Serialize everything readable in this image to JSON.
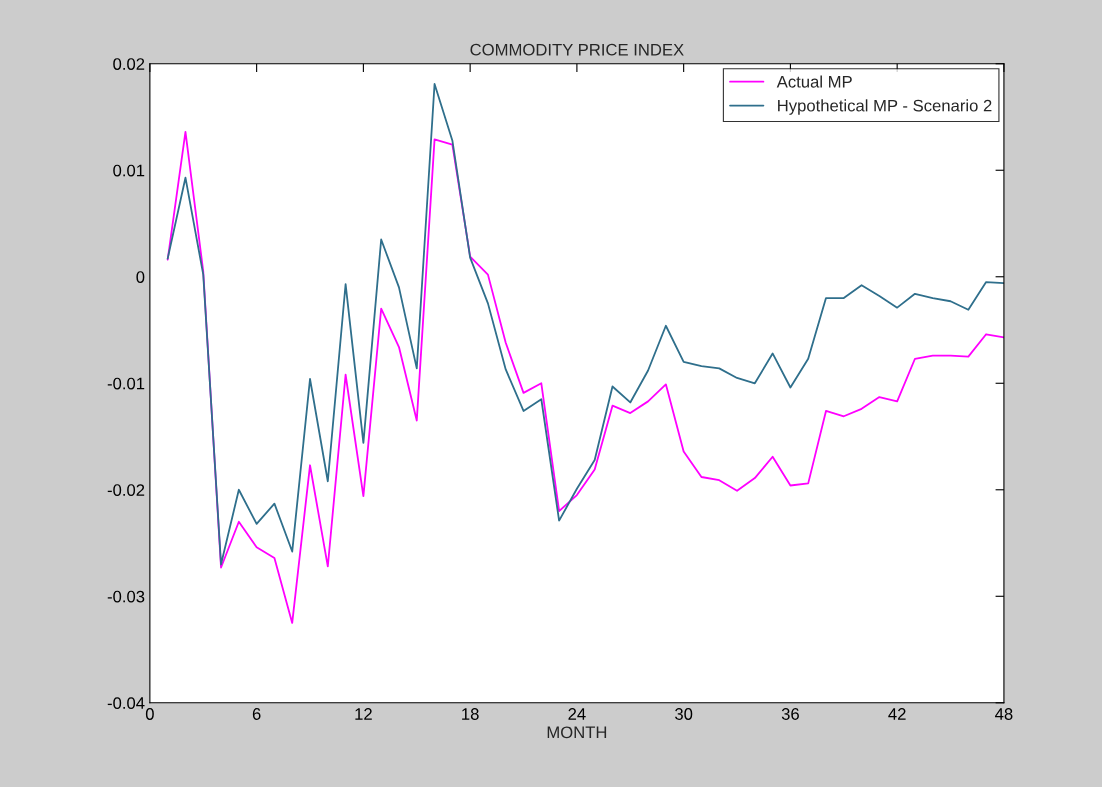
{
  "chart_data": {
    "type": "line",
    "title": "COMMODITY PRICE INDEX",
    "xlabel": "MONTH",
    "x": [
      1,
      2,
      3,
      4,
      5,
      6,
      7,
      8,
      9,
      10,
      11,
      12,
      13,
      14,
      15,
      16,
      17,
      18,
      19,
      20,
      21,
      22,
      23,
      24,
      25,
      26,
      27,
      28,
      29,
      30,
      31,
      32,
      33,
      34,
      35,
      36,
      37,
      38,
      39,
      40,
      41,
      42,
      43,
      44,
      45,
      46,
      47,
      48
    ],
    "series": [
      {
        "name": "Actual MP",
        "color": "#ff00ff",
        "values": [
          0.0016,
          0.0136,
          0.0005,
          -0.0273,
          -0.023,
          -0.0254,
          -0.0264,
          -0.0325,
          -0.0177,
          -0.0272,
          -0.0092,
          -0.0206,
          -0.003,
          -0.0066,
          -0.0135,
          0.0129,
          0.0124,
          0.0019,
          0.0002,
          -0.0062,
          -0.0109,
          -0.01,
          -0.022,
          -0.0205,
          -0.0181,
          -0.0121,
          -0.0128,
          -0.0117,
          -0.0101,
          -0.0164,
          -0.0188,
          -0.0191,
          -0.0201,
          -0.0189,
          -0.0169,
          -0.0196,
          -0.0194,
          -0.0126,
          -0.0131,
          -0.0124,
          -0.0113,
          -0.0117,
          -0.0077,
          -0.0074,
          -0.0074,
          -0.0075,
          -0.0054,
          -0.0057
        ]
      },
      {
        "name": "Hypothetical MP - Scenario 2",
        "color": "#2f6f8c",
        "values": [
          0.0017,
          0.0093,
          0.0002,
          -0.027,
          -0.02,
          -0.0232,
          -0.0213,
          -0.0258,
          -0.0096,
          -0.0192,
          -0.0007,
          -0.0156,
          0.0035,
          -0.001,
          -0.0086,
          0.0181,
          0.0128,
          0.0018,
          -0.0025,
          -0.0087,
          -0.0126,
          -0.0115,
          -0.0229,
          -0.0199,
          -0.0172,
          -0.0103,
          -0.0118,
          -0.0088,
          -0.0046,
          -0.008,
          -0.0084,
          -0.0086,
          -0.0095,
          -0.01,
          -0.0072,
          -0.0104,
          -0.0077,
          -0.002,
          -0.002,
          -0.0008,
          -0.0018,
          -0.0029,
          -0.0016,
          -0.002,
          -0.0023,
          -0.0031,
          -0.0005,
          -0.0006
        ]
      }
    ],
    "xlim": [
      0,
      48
    ],
    "xticks": [
      0,
      6,
      12,
      18,
      24,
      30,
      36,
      42,
      48
    ],
    "ylim": [
      -0.04,
      0.02
    ],
    "yticks": [
      -0.04,
      -0.03,
      -0.02,
      -0.01,
      0,
      0.01,
      0.02
    ],
    "grid": false,
    "legend": "top right",
    "marker": "none",
    "line_style": "solid"
  }
}
